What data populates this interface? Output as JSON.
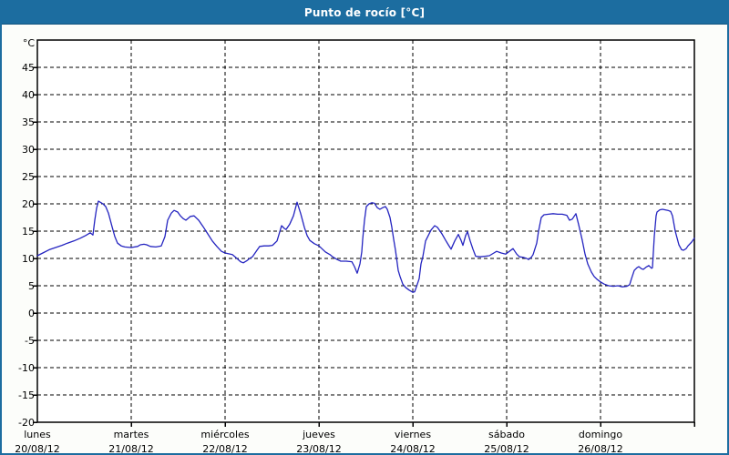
{
  "header": {
    "title": "Punto de rocío [°C]"
  },
  "colors": {
    "frame_border": "#1c6da0",
    "titlebar_bg": "#1c6da0",
    "title_text": "#ffffff",
    "page_bg": "#fcfdfa",
    "plot_bg": "#ffffff",
    "grid": "#000000",
    "axis": "#000000",
    "label_text": "#000000",
    "series_line": "#2424c0"
  },
  "chart_data": {
    "type": "line",
    "title": "Punto de rocío [°C]",
    "y_unit_label": "°C",
    "ylim": [
      -20,
      50
    ],
    "xlim_days": [
      0,
      7
    ],
    "y_ticks": [
      45,
      40,
      35,
      30,
      25,
      20,
      15,
      10,
      5,
      0,
      -5,
      -10,
      -15,
      -20
    ],
    "grid": "dashed",
    "legend": "none",
    "days": [
      {
        "name": "lunes",
        "date": "20/08/12"
      },
      {
        "name": "martes",
        "date": "21/08/12"
      },
      {
        "name": "miércoles",
        "date": "22/08/12"
      },
      {
        "name": "jueves",
        "date": "23/08/12"
      },
      {
        "name": "viernes",
        "date": "24/08/12"
      },
      {
        "name": "sábado",
        "date": "25/08/12"
      },
      {
        "name": "domingo",
        "date": "26/08/12"
      }
    ],
    "series": [
      {
        "name": "Punto de rocío",
        "color": "#2424c0",
        "points": [
          [
            0.0,
            10.5
          ],
          [
            0.058,
            11.0
          ],
          [
            0.126,
            11.6
          ],
          [
            0.194,
            12.0
          ],
          [
            0.262,
            12.4
          ],
          [
            0.32,
            12.8
          ],
          [
            0.388,
            13.2
          ],
          [
            0.456,
            13.7
          ],
          [
            0.515,
            14.2
          ],
          [
            0.563,
            14.7
          ],
          [
            0.592,
            14.3
          ],
          [
            0.612,
            17.0
          ],
          [
            0.631,
            19.2
          ],
          [
            0.65,
            20.5
          ],
          [
            0.68,
            20.2
          ],
          [
            0.699,
            20.0
          ],
          [
            0.728,
            19.5
          ],
          [
            0.757,
            18.3
          ],
          [
            0.796,
            15.8
          ],
          [
            0.825,
            14.0
          ],
          [
            0.854,
            12.8
          ],
          [
            0.893,
            12.3
          ],
          [
            0.932,
            12.1
          ],
          [
            1.0,
            12.0
          ],
          [
            1.068,
            12.2
          ],
          [
            1.097,
            12.5
          ],
          [
            1.136,
            12.6
          ],
          [
            1.165,
            12.5
          ],
          [
            1.204,
            12.2
          ],
          [
            1.262,
            12.1
          ],
          [
            1.32,
            12.3
          ],
          [
            1.359,
            14.0
          ],
          [
            1.388,
            17.0
          ],
          [
            1.427,
            18.3
          ],
          [
            1.456,
            18.8
          ],
          [
            1.495,
            18.5
          ],
          [
            1.524,
            17.8
          ],
          [
            1.553,
            17.3
          ],
          [
            1.583,
            17.0
          ],
          [
            1.631,
            17.7
          ],
          [
            1.67,
            17.8
          ],
          [
            1.718,
            17.0
          ],
          [
            1.767,
            15.8
          ],
          [
            1.816,
            14.5
          ],
          [
            1.864,
            13.2
          ],
          [
            1.913,
            12.2
          ],
          [
            1.961,
            11.3
          ],
          [
            2.0,
            11.0
          ],
          [
            2.078,
            10.7
          ],
          [
            2.126,
            10.0
          ],
          [
            2.165,
            9.4
          ],
          [
            2.194,
            9.2
          ],
          [
            2.233,
            9.6
          ],
          [
            2.262,
            10.0
          ],
          [
            2.291,
            10.3
          ],
          [
            2.34,
            11.5
          ],
          [
            2.369,
            12.2
          ],
          [
            2.417,
            12.3
          ],
          [
            2.466,
            12.3
          ],
          [
            2.505,
            12.4
          ],
          [
            2.553,
            13.2
          ],
          [
            2.602,
            16.0
          ],
          [
            2.631,
            15.5
          ],
          [
            2.65,
            15.3
          ],
          [
            2.689,
            16.3
          ],
          [
            2.728,
            17.8
          ],
          [
            2.767,
            20.3
          ],
          [
            2.806,
            18.2
          ],
          [
            2.845,
            15.7
          ],
          [
            2.874,
            14.2
          ],
          [
            2.903,
            13.3
          ],
          [
            2.951,
            12.7
          ],
          [
            3.0,
            12.3
          ],
          [
            3.068,
            11.2
          ],
          [
            3.117,
            10.7
          ],
          [
            3.146,
            10.3
          ],
          [
            3.194,
            9.8
          ],
          [
            3.233,
            9.5
          ],
          [
            3.291,
            9.5
          ],
          [
            3.35,
            9.4
          ],
          [
            3.379,
            8.5
          ],
          [
            3.408,
            7.3
          ],
          [
            3.437,
            9.0
          ],
          [
            3.456,
            11.2
          ],
          [
            3.466,
            13.5
          ],
          [
            3.485,
            17.0
          ],
          [
            3.505,
            19.5
          ],
          [
            3.534,
            20.0
          ],
          [
            3.563,
            20.2
          ],
          [
            3.592,
            20.1
          ],
          [
            3.621,
            19.3
          ],
          [
            3.65,
            19.0
          ],
          [
            3.68,
            19.3
          ],
          [
            3.709,
            19.5
          ],
          [
            3.728,
            19.0
          ],
          [
            3.757,
            17.5
          ],
          [
            3.777,
            15.7
          ],
          [
            3.796,
            13.5
          ],
          [
            3.816,
            11.5
          ],
          [
            3.845,
            7.8
          ],
          [
            3.864,
            6.7
          ],
          [
            3.893,
            5.3
          ],
          [
            3.922,
            4.7
          ],
          [
            3.961,
            4.2
          ],
          [
            4.0,
            3.8
          ],
          [
            4.019,
            3.9
          ],
          [
            4.039,
            4.8
          ],
          [
            4.068,
            6.3
          ],
          [
            4.087,
            9.0
          ],
          [
            4.107,
            10.3
          ],
          [
            4.136,
            13.2
          ],
          [
            4.165,
            14.2
          ],
          [
            4.194,
            15.2
          ],
          [
            4.233,
            16.0
          ],
          [
            4.262,
            15.7
          ],
          [
            4.311,
            14.5
          ],
          [
            4.35,
            13.3
          ],
          [
            4.379,
            12.5
          ],
          [
            4.408,
            11.7
          ],
          [
            4.447,
            13.2
          ],
          [
            4.485,
            14.4
          ],
          [
            4.515,
            13.3
          ],
          [
            4.534,
            12.4
          ],
          [
            4.563,
            14.2
          ],
          [
            4.583,
            14.9
          ],
          [
            4.612,
            13.2
          ],
          [
            4.641,
            11.7
          ],
          [
            4.67,
            10.4
          ],
          [
            4.718,
            10.3
          ],
          [
            4.767,
            10.4
          ],
          [
            4.816,
            10.5
          ],
          [
            4.864,
            11.0
          ],
          [
            4.893,
            11.3
          ],
          [
            4.942,
            11.0
          ],
          [
            4.99,
            10.8
          ],
          [
            5.029,
            11.3
          ],
          [
            5.068,
            11.8
          ],
          [
            5.107,
            10.8
          ],
          [
            5.136,
            10.3
          ],
          [
            5.175,
            10.2
          ],
          [
            5.214,
            10.0
          ],
          [
            5.233,
            9.8
          ],
          [
            5.262,
            10.2
          ],
          [
            5.282,
            10.7
          ],
          [
            5.32,
            12.8
          ],
          [
            5.34,
            15.0
          ],
          [
            5.369,
            17.5
          ],
          [
            5.398,
            18.0
          ],
          [
            5.447,
            18.1
          ],
          [
            5.495,
            18.2
          ],
          [
            5.544,
            18.1
          ],
          [
            5.592,
            18.1
          ],
          [
            5.641,
            17.9
          ],
          [
            5.67,
            17.0
          ],
          [
            5.699,
            17.2
          ],
          [
            5.738,
            18.2
          ],
          [
            5.767,
            16.2
          ],
          [
            5.806,
            13.3
          ],
          [
            5.835,
            10.8
          ],
          [
            5.864,
            9.0
          ],
          [
            5.903,
            7.5
          ],
          [
            5.932,
            6.7
          ],
          [
            5.961,
            6.2
          ],
          [
            6.0,
            5.7
          ],
          [
            6.039,
            5.3
          ],
          [
            6.087,
            5.0
          ],
          [
            6.136,
            4.9
          ],
          [
            6.184,
            5.0
          ],
          [
            6.233,
            4.8
          ],
          [
            6.282,
            4.9
          ],
          [
            6.311,
            5.2
          ],
          [
            6.33,
            6.3
          ],
          [
            6.359,
            7.8
          ],
          [
            6.388,
            8.3
          ],
          [
            6.408,
            8.5
          ],
          [
            6.437,
            8.1
          ],
          [
            6.456,
            8.0
          ],
          [
            6.485,
            8.4
          ],
          [
            6.515,
            8.7
          ],
          [
            6.544,
            8.2
          ],
          [
            6.553,
            8.3
          ],
          [
            6.573,
            14.0
          ],
          [
            6.592,
            17.8
          ],
          [
            6.602,
            18.5
          ],
          [
            6.631,
            18.9
          ],
          [
            6.66,
            19.0
          ],
          [
            6.689,
            18.9
          ],
          [
            6.718,
            18.8
          ],
          [
            6.748,
            18.6
          ],
          [
            6.767,
            17.8
          ],
          [
            6.796,
            15.0
          ],
          [
            6.835,
            12.5
          ],
          [
            6.864,
            11.6
          ],
          [
            6.884,
            11.5
          ],
          [
            6.913,
            11.8
          ],
          [
            6.932,
            12.3
          ],
          [
            6.971,
            13.0
          ],
          [
            7.0,
            13.7
          ]
        ]
      }
    ]
  }
}
